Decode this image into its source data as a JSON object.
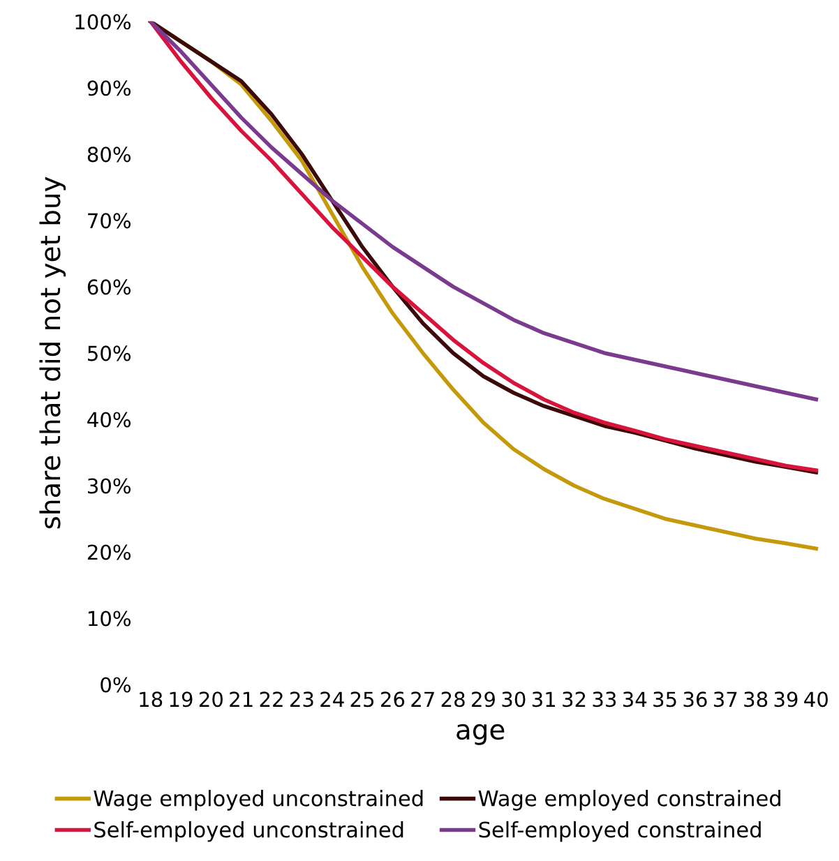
{
  "chart_data": {
    "type": "line",
    "xlabel": "age",
    "ylabel": "share that did not yet buy",
    "categories": [
      "18",
      "19",
      "20",
      "21",
      "22",
      "23",
      "24",
      "25",
      "26",
      "27",
      "28",
      "29",
      "30",
      "31",
      "32",
      "33",
      "34",
      "35",
      "36",
      "37",
      "38",
      "39",
      "40"
    ],
    "series": [
      {
        "name": "Wage employed unconstrained",
        "color": "#c49a0c",
        "values": [
          100,
          97,
          94,
          90.5,
          85,
          79,
          71,
          63,
          56,
          50,
          44.5,
          39.5,
          35.5,
          32.5,
          30,
          28,
          26.5,
          25,
          24,
          23,
          22,
          21.3,
          20.5
        ]
      },
      {
        "name": "Wage employed constrained",
        "color": "#3d0a0a",
        "values": [
          100,
          97,
          94,
          91,
          86,
          80,
          73,
          66,
          60,
          54.5,
          50,
          46.5,
          44,
          42,
          40.5,
          39,
          38,
          36.8,
          35.6,
          34.6,
          33.6,
          32.8,
          32
        ]
      },
      {
        "name": "Self-employed unconstrained",
        "color": "#d9143c",
        "values": [
          100,
          94,
          88.5,
          83.5,
          79,
          74,
          69,
          64.5,
          60,
          56,
          52,
          48.5,
          45.5,
          43,
          41,
          39.5,
          38.3,
          37,
          36,
          35,
          34,
          33,
          32.3
        ]
      },
      {
        "name": "Self-employed constrained",
        "color": "#7a3a8e",
        "values": [
          100,
          95.5,
          90.5,
          85.5,
          81,
          77,
          73,
          69.5,
          66,
          63,
          60,
          57.5,
          55,
          53,
          51.5,
          50,
          49,
          48,
          47,
          46,
          45,
          44,
          43
        ]
      }
    ],
    "ylim": [
      0,
      100
    ],
    "yticks": [
      {
        "value": 0,
        "label": "0%"
      },
      {
        "value": 10,
        "label": "10%"
      },
      {
        "value": 20,
        "label": "20%"
      },
      {
        "value": 30,
        "label": "30%"
      },
      {
        "value": 40,
        "label": "40%"
      },
      {
        "value": 50,
        "label": "50%"
      },
      {
        "value": 60,
        "label": "60%"
      },
      {
        "value": 70,
        "label": "70%"
      },
      {
        "value": 80,
        "label": "80%"
      },
      {
        "value": 90,
        "label": "90%"
      },
      {
        "value": 100,
        "label": "100%"
      }
    ],
    "grid": false,
    "legend": "bottom",
    "marker": "none",
    "line_style": "solid"
  }
}
